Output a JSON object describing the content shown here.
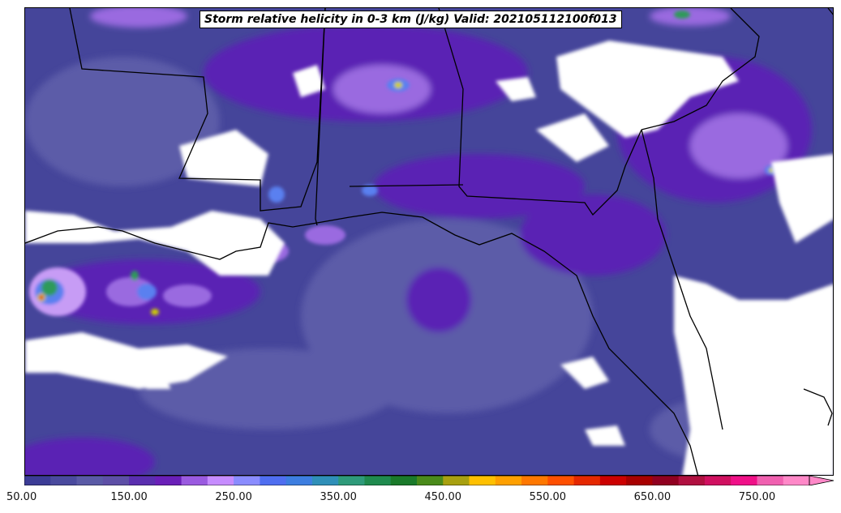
{
  "title": "Storm relative helicity in 0-3 km (J/kg) Valid: 2021051121 00f013",
  "colorbar": {
    "ticks": [
      "50.00",
      "150.00",
      "250.00",
      "350.00",
      "450.00",
      "550.00",
      "650.00",
      "750.00"
    ],
    "min": 50,
    "max": 800,
    "step": 25,
    "colors": [
      "#3c3c96",
      "#4a4a9e",
      "#5a5aa6",
      "#5d4fa6",
      "#5a2eaf",
      "#6a1fb8",
      "#9a5ae0",
      "#c68cff",
      "#8a8cff",
      "#4f6ef0",
      "#3d7ee0",
      "#2f8fb8",
      "#2e9a7a",
      "#1f8a4e",
      "#1a7a2a",
      "#4a8a1a",
      "#a8a010",
      "#ffc000",
      "#ffa000",
      "#ff7800",
      "#ff5000",
      "#e52800",
      "#cc0000",
      "#a80000",
      "#900020",
      "#b01040",
      "#d01060",
      "#f01088",
      "#f060b0",
      "#ff88c8"
    ]
  },
  "map_colors": {
    "background_low": "#45459a",
    "band_mid": "#5b5ba8",
    "band_purple": "#5a24b4",
    "band_light": "#9a6ae0",
    "band_lavender": "#c79cf5",
    "band_blue": "#5a80f0",
    "band_green": "#2e9a5a",
    "band_yellow": "#d0d000",
    "band_red": "#e02020",
    "missing": "#ffffff"
  }
}
